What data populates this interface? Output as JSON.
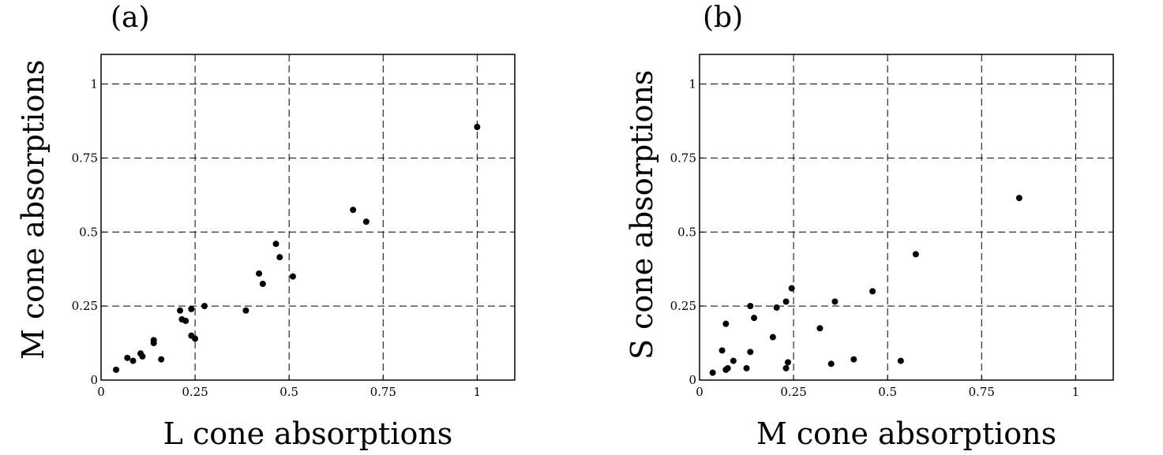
{
  "chart_data": [
    {
      "type": "scatter",
      "panel_label": "(a)",
      "xlabel": "L cone absorptions",
      "ylabel": "M cone absorptions",
      "xlim": [
        0,
        1.1
      ],
      "ylim": [
        0,
        1.1
      ],
      "xticks": [
        0,
        0.25,
        0.5,
        0.75,
        1
      ],
      "yticks": [
        0,
        0.25,
        0.5,
        0.75,
        1
      ],
      "xtick_labels": [
        "0",
        "0.25",
        "0.5",
        "0.75",
        "1"
      ],
      "ytick_labels": [
        "0",
        "0.25",
        "0.5",
        "0.75",
        "1"
      ],
      "grid": "dashed",
      "points": [
        [
          0.04,
          0.035
        ],
        [
          0.07,
          0.075
        ],
        [
          0.085,
          0.065
        ],
        [
          0.105,
          0.09
        ],
        [
          0.11,
          0.08
        ],
        [
          0.14,
          0.125
        ],
        [
          0.14,
          0.135
        ],
        [
          0.16,
          0.07
        ],
        [
          0.21,
          0.235
        ],
        [
          0.215,
          0.205
        ],
        [
          0.225,
          0.2
        ],
        [
          0.24,
          0.24
        ],
        [
          0.24,
          0.15
        ],
        [
          0.25,
          0.14
        ],
        [
          0.275,
          0.25
        ],
        [
          0.385,
          0.235
        ],
        [
          0.42,
          0.36
        ],
        [
          0.43,
          0.325
        ],
        [
          0.465,
          0.46
        ],
        [
          0.475,
          0.415
        ],
        [
          0.51,
          0.35
        ],
        [
          0.67,
          0.575
        ],
        [
          0.705,
          0.535
        ],
        [
          1.0,
          0.855
        ]
      ]
    },
    {
      "type": "scatter",
      "panel_label": "(b)",
      "xlabel": "M cone absorptions",
      "ylabel": "S cone absorptions",
      "xlim": [
        0,
        1.1
      ],
      "ylim": [
        0,
        1.1
      ],
      "xticks": [
        0,
        0.25,
        0.5,
        0.75,
        1
      ],
      "yticks": [
        0,
        0.25,
        0.5,
        0.75,
        1
      ],
      "xtick_labels": [
        "0",
        "0.25",
        "0.5",
        "0.75",
        "1"
      ],
      "ytick_labels": [
        "0",
        "0.25",
        "0.5",
        "0.75",
        "1"
      ],
      "grid": "dashed",
      "points": [
        [
          0.035,
          0.025
        ],
        [
          0.06,
          0.1
        ],
        [
          0.07,
          0.035
        ],
        [
          0.07,
          0.19
        ],
        [
          0.075,
          0.04
        ],
        [
          0.09,
          0.065
        ],
        [
          0.125,
          0.04
        ],
        [
          0.135,
          0.25
        ],
        [
          0.135,
          0.095
        ],
        [
          0.145,
          0.21
        ],
        [
          0.195,
          0.145
        ],
        [
          0.205,
          0.245
        ],
        [
          0.23,
          0.04
        ],
        [
          0.23,
          0.265
        ],
        [
          0.235,
          0.06
        ],
        [
          0.245,
          0.31
        ],
        [
          0.32,
          0.175
        ],
        [
          0.35,
          0.055
        ],
        [
          0.36,
          0.265
        ],
        [
          0.41,
          0.07
        ],
        [
          0.46,
          0.3
        ],
        [
          0.535,
          0.065
        ],
        [
          0.575,
          0.425
        ],
        [
          0.85,
          0.615
        ]
      ]
    }
  ]
}
